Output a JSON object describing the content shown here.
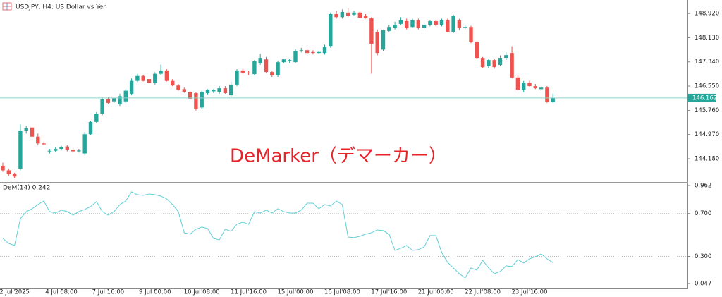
{
  "chart_data": [
    {
      "type": "candlestick",
      "title": "USDJPY, H4:  US Dollar vs Yen",
      "annotation": "DeMarker（デマーカー）",
      "up_color": "#26a69a",
      "down_color": "#ef5350",
      "current_price": 146.162,
      "current_price_color": "#26a69a",
      "ylim": [
        143.42,
        149.36
      ],
      "yticks": [
        {
          "value": 148.92,
          "label": "148.920"
        },
        {
          "value": 148.13,
          "label": "148.130"
        },
        {
          "value": 147.34,
          "label": "147.340"
        },
        {
          "value": 146.55,
          "label": "146.550"
        },
        {
          "value": 145.76,
          "label": "145.760"
        },
        {
          "value": 144.97,
          "label": "144.970"
        },
        {
          "value": 144.18,
          "label": "144.180"
        }
      ],
      "ohlc": [
        [
          143.95,
          144.05,
          143.75,
          143.8
        ],
        [
          143.8,
          143.85,
          143.62,
          143.68
        ],
        [
          143.68,
          143.72,
          143.55,
          143.6
        ],
        [
          143.85,
          145.3,
          143.8,
          145.1
        ],
        [
          145.1,
          145.25,
          145.0,
          145.18
        ],
        [
          145.2,
          145.25,
          144.85,
          144.9
        ],
        [
          144.9,
          145.0,
          144.62,
          144.68
        ],
        [
          144.68,
          144.72,
          144.62,
          144.65
        ],
        [
          144.42,
          144.5,
          144.35,
          144.44
        ],
        [
          144.44,
          144.55,
          144.4,
          144.5
        ],
        [
          144.5,
          144.6,
          144.45,
          144.55
        ],
        [
          144.58,
          144.62,
          144.42,
          144.48
        ],
        [
          144.48,
          144.55,
          144.38,
          144.42
        ],
        [
          144.42,
          144.5,
          144.38,
          144.45
        ],
        [
          144.35,
          145.05,
          144.3,
          144.98
        ],
        [
          144.98,
          145.4,
          144.95,
          145.38
        ],
        [
          145.38,
          145.7,
          145.35,
          145.65
        ],
        [
          145.65,
          146.15,
          145.6,
          146.12
        ],
        [
          146.12,
          146.2,
          145.95,
          146.0
        ],
        [
          146.05,
          146.2,
          146.0,
          146.15
        ],
        [
          145.95,
          146.3,
          145.9,
          146.22
        ],
        [
          146.05,
          146.45,
          146.0,
          146.4
        ],
        [
          146.3,
          146.8,
          146.25,
          146.72
        ],
        [
          146.72,
          146.95,
          146.68,
          146.88
        ],
        [
          146.88,
          146.92,
          146.7,
          146.72
        ],
        [
          146.78,
          146.82,
          146.62,
          146.65
        ],
        [
          146.65,
          147.0,
          146.6,
          146.95
        ],
        [
          146.95,
          147.25,
          146.9,
          147.06
        ],
        [
          147.06,
          147.1,
          146.7,
          146.72
        ],
        [
          146.72,
          146.78,
          146.55,
          146.57
        ],
        [
          146.57,
          146.62,
          146.4,
          146.43
        ],
        [
          146.45,
          146.5,
          146.33,
          146.36
        ],
        [
          146.36,
          146.4,
          146.1,
          146.14
        ],
        [
          146.32,
          146.35,
          145.75,
          145.8
        ],
        [
          145.85,
          146.4,
          145.8,
          146.36
        ],
        [
          146.32,
          146.45,
          146.28,
          146.42
        ],
        [
          146.38,
          146.45,
          146.33,
          146.42
        ],
        [
          146.36,
          146.55,
          146.3,
          146.48
        ],
        [
          146.48,
          146.55,
          146.3,
          146.32
        ],
        [
          146.25,
          146.7,
          146.2,
          146.6
        ],
        [
          146.6,
          147.1,
          146.55,
          147.06
        ],
        [
          147.06,
          147.12,
          146.95,
          146.99
        ],
        [
          146.99,
          147.05,
          146.9,
          146.98
        ],
        [
          146.94,
          147.4,
          146.9,
          147.36
        ],
        [
          147.29,
          147.6,
          147.25,
          147.47
        ],
        [
          147.42,
          147.5,
          146.98,
          147.01
        ],
        [
          147.01,
          147.05,
          146.85,
          146.9
        ],
        [
          146.9,
          147.38,
          146.85,
          147.33
        ],
        [
          147.33,
          147.45,
          147.3,
          147.42
        ],
        [
          147.38,
          147.45,
          147.3,
          147.4
        ],
        [
          147.33,
          147.75,
          147.3,
          147.7
        ],
        [
          147.7,
          147.8,
          147.65,
          147.72
        ],
        [
          147.72,
          147.78,
          147.6,
          147.63
        ],
        [
          147.66,
          147.72,
          147.58,
          147.63
        ],
        [
          147.63,
          147.7,
          147.6,
          147.66
        ],
        [
          147.63,
          147.9,
          147.58,
          147.82
        ],
        [
          147.86,
          148.95,
          147.8,
          148.9
        ],
        [
          148.9,
          149.0,
          148.75,
          148.8
        ],
        [
          148.8,
          149.05,
          148.75,
          148.97
        ],
        [
          148.95,
          149.1,
          148.8,
          148.85
        ],
        [
          148.88,
          149.0,
          148.85,
          148.95
        ],
        [
          148.95,
          148.98,
          148.78,
          148.78
        ],
        [
          148.85,
          148.9,
          148.75,
          148.76
        ],
        [
          148.76,
          148.8,
          146.95,
          147.93
        ],
        [
          148.32,
          148.4,
          147.55,
          147.63
        ],
        [
          147.74,
          148.4,
          147.7,
          148.37
        ],
        [
          148.35,
          148.55,
          148.3,
          148.48
        ],
        [
          148.45,
          148.65,
          148.4,
          148.55
        ],
        [
          148.58,
          148.8,
          148.55,
          148.7
        ],
        [
          148.67,
          148.75,
          148.4,
          148.44
        ],
        [
          148.48,
          148.75,
          148.45,
          148.7
        ],
        [
          148.7,
          148.75,
          148.4,
          148.44
        ],
        [
          148.44,
          148.6,
          148.4,
          148.55
        ],
        [
          148.55,
          148.7,
          148.5,
          148.67
        ],
        [
          148.67,
          148.72,
          148.5,
          148.55
        ],
        [
          148.55,
          148.75,
          148.5,
          148.7
        ],
        [
          148.7,
          148.75,
          148.3,
          148.32
        ],
        [
          148.32,
          148.88,
          148.28,
          148.85
        ],
        [
          148.7,
          148.75,
          148.38,
          148.44
        ],
        [
          148.44,
          148.55,
          148.4,
          148.48
        ],
        [
          148.48,
          148.52,
          147.95,
          147.98
        ],
        [
          147.98,
          148.02,
          147.45,
          147.47
        ],
        [
          147.47,
          147.5,
          147.15,
          147.17
        ],
        [
          147.2,
          147.45,
          147.15,
          147.4
        ],
        [
          147.4,
          147.45,
          147.12,
          147.17
        ],
        [
          147.24,
          147.55,
          147.2,
          147.47
        ],
        [
          147.47,
          147.65,
          147.4,
          147.56
        ],
        [
          147.63,
          147.85,
          146.8,
          146.83
        ],
        [
          146.83,
          146.9,
          146.4,
          146.43
        ],
        [
          146.43,
          146.72,
          146.35,
          146.66
        ],
        [
          146.66,
          146.72,
          146.52,
          146.55
        ],
        [
          146.55,
          146.62,
          146.45,
          146.48
        ],
        [
          146.45,
          146.55,
          146.4,
          146.5
        ],
        [
          146.5,
          146.55,
          146.0,
          146.04
        ],
        [
          146.04,
          146.3,
          146.0,
          146.16
        ]
      ]
    },
    {
      "type": "line",
      "title": "DeM(14) 0.242",
      "color": "#5fcfd6",
      "ylim": [
        0.007,
        0.988
      ],
      "yticks": [
        0.962,
        {
          "value": 0.7,
          "label": "0.700"
        },
        {
          "value": 0.3,
          "label": "0.300"
        },
        0.047
      ],
      "levels": [
        0.7,
        0.3
      ],
      "categories": [
        null,
        null,
        "2 Jul 2025",
        null,
        null,
        null,
        null,
        null,
        null,
        null,
        "4 Jul 08:00",
        null,
        null,
        null,
        null,
        null,
        null,
        null,
        "7 Jul 16:00",
        null,
        null,
        null,
        null,
        null,
        null,
        null,
        "9 Jul 00:00",
        null,
        null,
        null,
        null,
        null,
        null,
        null,
        "10 Jul 08:00",
        null,
        null,
        null,
        null,
        null,
        null,
        null,
        "11 Jul 16:00",
        null,
        null,
        null,
        null,
        null,
        null,
        null,
        "15 Jul 00:00",
        null,
        null,
        null,
        null,
        null,
        null,
        null,
        "16 Jul 08:00",
        null,
        null,
        null,
        null,
        null,
        null,
        null,
        "17 Jul 16:00",
        null,
        null,
        null,
        null,
        null,
        null,
        null,
        "21 Jul 00:00",
        null,
        null,
        null,
        null,
        null,
        null,
        null,
        "22 Jul 08:00",
        null,
        null,
        null,
        null,
        null,
        null,
        null,
        "23 Jul 16:00",
        null,
        null,
        null,
        null
      ],
      "values": [
        0.468,
        0.422,
        0.402,
        0.653,
        0.718,
        0.745,
        0.784,
        0.817,
        0.718,
        0.705,
        0.732,
        0.718,
        0.686,
        0.718,
        0.738,
        0.765,
        0.811,
        0.718,
        0.686,
        0.718,
        0.784,
        0.817,
        0.903,
        0.876,
        0.87,
        0.883,
        0.876,
        0.863,
        0.837,
        0.784,
        0.718,
        0.521,
        0.508,
        0.554,
        0.574,
        0.56,
        0.468,
        0.455,
        0.554,
        0.534,
        0.6,
        0.62,
        0.6,
        0.718,
        0.705,
        0.732,
        0.705,
        0.745,
        0.718,
        0.705,
        0.705,
        0.732,
        0.797,
        0.797,
        0.745,
        0.784,
        0.771,
        0.817,
        0.784,
        0.481,
        0.475,
        0.488,
        0.508,
        0.521,
        0.547,
        0.541,
        0.508,
        0.356,
        0.376,
        0.402,
        0.356,
        0.363,
        0.389,
        0.495,
        0.495,
        0.337,
        0.244,
        0.192,
        0.139,
        0.1,
        0.192,
        0.172,
        0.264,
        0.192,
        0.139,
        0.159,
        0.212,
        0.205,
        0.271,
        0.238,
        0.277,
        0.297,
        0.323,
        0.277,
        0.242
      ]
    }
  ]
}
